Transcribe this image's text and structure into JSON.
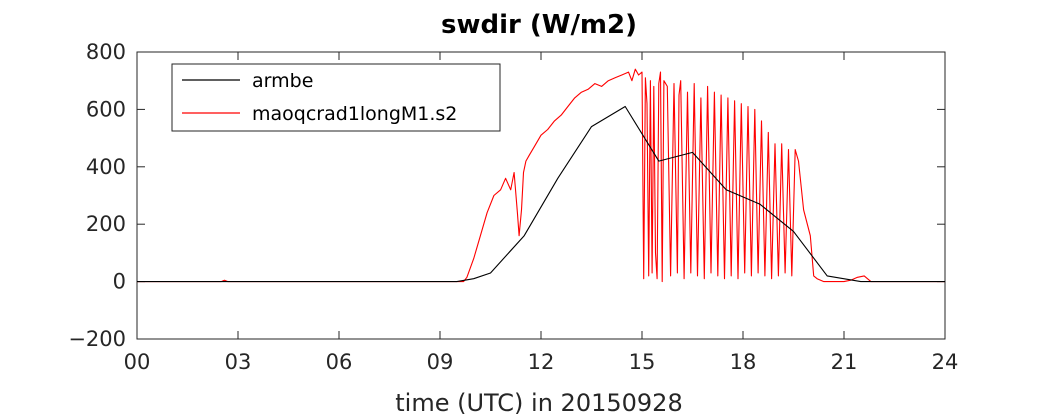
{
  "chart_data": {
    "type": "line",
    "title": "swdir  (W/m2)",
    "xlabel": "time (UTC) in 20150928",
    "ylabel": "",
    "xlim": [
      0,
      24
    ],
    "ylim": [
      -200,
      800
    ],
    "xticks": [
      0,
      3,
      6,
      9,
      12,
      15,
      18,
      21,
      24
    ],
    "xtick_labels": [
      "00",
      "03",
      "06",
      "09",
      "12",
      "15",
      "18",
      "21",
      "24"
    ],
    "yticks": [
      -200,
      0,
      200,
      400,
      600,
      800
    ],
    "ytick_labels": [
      "−200",
      "0",
      "200",
      "400",
      "600",
      "800"
    ],
    "grid": false,
    "legend_position": "top-left",
    "series": [
      {
        "name": "armbe",
        "color": "#000000",
        "x": [
          0,
          9.5,
          10.0,
          10.5,
          11.5,
          12.5,
          13.5,
          14.5,
          15.5,
          16.5,
          17.5,
          18.5,
          19.5,
          20.5,
          21.5,
          24
        ],
        "y": [
          0,
          0,
          10,
          30,
          160,
          360,
          540,
          610,
          420,
          450,
          320,
          270,
          175,
          20,
          0,
          0
        ]
      },
      {
        "name": "maoqcrad1longM1.s2",
        "color": "#ff0000",
        "x": [
          0,
          2.5,
          2.6,
          2.7,
          5.0,
          9.7,
          9.8,
          10.0,
          10.2,
          10.4,
          10.6,
          10.8,
          10.95,
          11.1,
          11.2,
          11.3,
          11.35,
          11.42,
          11.48,
          11.55,
          11.65,
          11.8,
          12.0,
          12.2,
          12.4,
          12.6,
          12.8,
          13.0,
          13.2,
          13.4,
          13.6,
          13.8,
          14.0,
          14.2,
          14.4,
          14.6,
          14.7,
          14.8,
          14.9,
          15.0,
          15.05,
          15.1,
          15.15,
          15.2,
          15.25,
          15.3,
          15.35,
          15.4,
          15.45,
          15.5,
          15.55,
          15.6,
          15.65,
          15.75,
          15.85,
          15.95,
          16.05,
          16.1,
          16.15,
          16.25,
          16.35,
          16.45,
          16.55,
          16.65,
          16.75,
          16.85,
          16.95,
          17.05,
          17.15,
          17.25,
          17.35,
          17.45,
          17.55,
          17.65,
          17.75,
          17.85,
          17.95,
          18.05,
          18.15,
          18.25,
          18.35,
          18.45,
          18.55,
          18.65,
          18.75,
          18.85,
          18.95,
          19.05,
          19.15,
          19.25,
          19.35,
          19.45,
          19.55,
          19.65,
          19.8,
          20.0,
          20.1,
          20.2,
          20.4,
          20.6,
          20.8,
          21.0,
          21.2,
          21.4,
          21.6,
          21.8,
          22.0,
          24.0
        ],
        "y": [
          0,
          0,
          5,
          0,
          0,
          0,
          15,
          80,
          160,
          240,
          300,
          320,
          360,
          320,
          380,
          240,
          160,
          250,
          380,
          420,
          440,
          470,
          510,
          530,
          560,
          580,
          610,
          640,
          660,
          670,
          690,
          680,
          700,
          710,
          720,
          730,
          700,
          740,
          720,
          730,
          10,
          710,
          620,
          20,
          700,
          30,
          680,
          100,
          10,
          690,
          730,
          0,
          700,
          680,
          20,
          690,
          30,
          650,
          700,
          10,
          660,
          30,
          690,
          20,
          640,
          10,
          680,
          30,
          660,
          20,
          650,
          10,
          640,
          20,
          630,
          10,
          620,
          30,
          610,
          20,
          600,
          30,
          560,
          20,
          520,
          10,
          480,
          20,
          480,
          30,
          460,
          20,
          460,
          420,
          250,
          160,
          20,
          10,
          0,
          0,
          0,
          0,
          5,
          15,
          20,
          0,
          0,
          0
        ]
      }
    ]
  }
}
